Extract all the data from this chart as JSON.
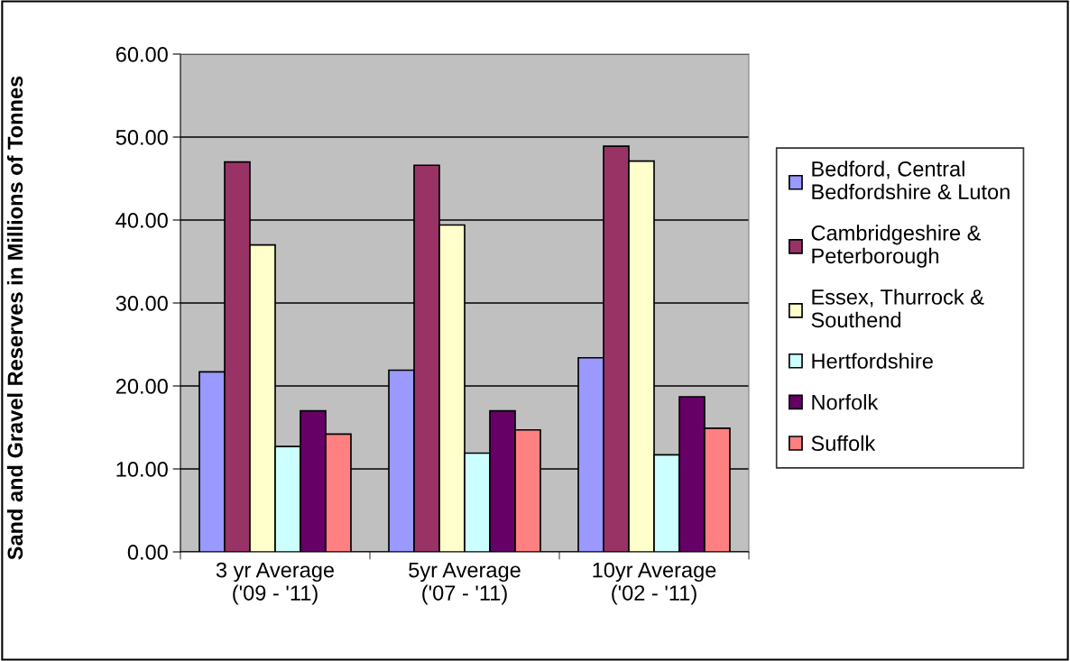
{
  "chart_data": {
    "type": "bar",
    "ylabel": "Sand and Gravel Reserves in Millions of Tonnes",
    "categories": [
      "3 yr Average\n('09 - '11)",
      "5yr Average\n('07 - '11)",
      "10yr Average\n('02 - '11)"
    ],
    "series": [
      {
        "name": "Bedford, Central\nBedfordshire & Luton",
        "color": "#9999ff",
        "values": [
          21.7,
          21.9,
          23.4
        ]
      },
      {
        "name": "Cambridgeshire &\nPeterborough",
        "color": "#993366",
        "values": [
          47.0,
          46.6,
          48.9
        ]
      },
      {
        "name": "Essex, Thurrock &\nSouthend",
        "color": "#ffffcc",
        "values": [
          37.0,
          39.4,
          47.1
        ]
      },
      {
        "name": "Hertfordshire",
        "color": "#ccffff",
        "values": [
          12.7,
          11.9,
          11.7
        ]
      },
      {
        "name": "Norfolk",
        "color": "#660066",
        "values": [
          17.0,
          17.0,
          18.7
        ]
      },
      {
        "name": "Suffolk",
        "color": "#ff8080",
        "values": [
          14.2,
          14.7,
          14.9
        ]
      }
    ],
    "ylim": [
      0,
      60
    ],
    "yticks": [
      {
        "value": 0,
        "label": "0.00"
      },
      {
        "value": 10,
        "label": "10.00"
      },
      {
        "value": 20,
        "label": "20.00"
      },
      {
        "value": 30,
        "label": "30.00"
      },
      {
        "value": 40,
        "label": "40.00"
      },
      {
        "value": 50,
        "label": "50.00"
      },
      {
        "value": 60,
        "label": "60.00"
      }
    ],
    "grid": "y",
    "legend": "right"
  }
}
